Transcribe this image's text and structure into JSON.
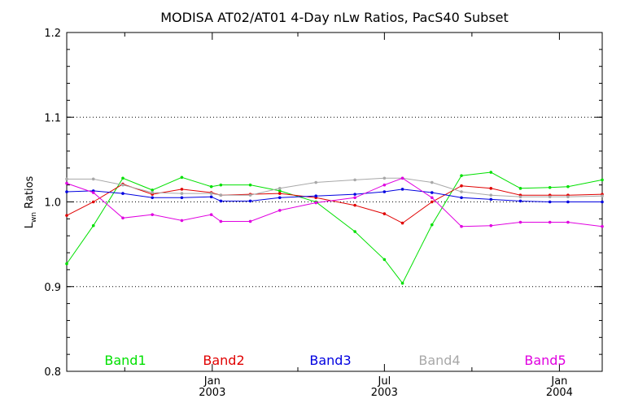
{
  "chart_data": {
    "type": "line",
    "title": "MODISA AT02/AT01 4-Day nLw Ratios, PacS40 Subset",
    "ylabel": {
      "main": "L",
      "sub": "wn",
      "rest": " Ratios"
    },
    "xlabel": "",
    "ylim": [
      0.8,
      1.2
    ],
    "yticks": [
      "0.8",
      "0.9",
      "1.0",
      "1.1",
      "1.2"
    ],
    "xlim": [
      "2002-08-01",
      "2004-02-15"
    ],
    "xticks": [
      {
        "date": "2003-01-01",
        "month": "Jan",
        "year": "2003"
      },
      {
        "date": "2003-07-01",
        "month": "Jul",
        "year": "2003"
      },
      {
        "date": "2004-01-01",
        "month": "Jan",
        "year": "2004"
      }
    ],
    "minor_xticks": [
      "2002-10-01",
      "2003-04-01",
      "2003-10-01"
    ],
    "reference_lines": [
      0.9,
      1.0,
      1.1
    ],
    "grid": "dotted horizontal at 0.9, 1.0, 1.1",
    "legend_position": "bottom",
    "series": [
      {
        "name": "Band1",
        "color": "#00e000",
        "x": [
          "2002-08-01",
          "2002-08-29",
          "2002-09-29",
          "2002-10-30",
          "2002-11-30",
          "2002-12-31",
          "2003-01-10",
          "2003-02-10",
          "2003-03-13",
          "2003-04-20",
          "2003-05-31",
          "2003-07-01",
          "2003-07-20",
          "2003-08-20",
          "2003-09-20",
          "2003-10-21",
          "2003-11-21",
          "2003-12-22",
          "2004-01-10",
          "2004-02-15"
        ],
        "values": [
          0.927,
          0.972,
          1.028,
          1.014,
          1.029,
          1.018,
          1.02,
          1.02,
          1.013,
          1.0,
          0.965,
          0.932,
          0.904,
          0.973,
          1.031,
          1.035,
          1.016,
          1.017,
          1.018,
          1.026
        ]
      },
      {
        "name": "Band2",
        "color": "#e00000",
        "x": [
          "2002-08-01",
          "2002-08-29",
          "2002-09-29",
          "2002-10-30",
          "2002-11-30",
          "2002-12-31",
          "2003-01-10",
          "2003-02-10",
          "2003-03-13",
          "2003-04-20",
          "2003-05-31",
          "2003-07-01",
          "2003-07-20",
          "2003-08-20",
          "2003-09-20",
          "2003-10-21",
          "2003-11-21",
          "2003-12-22",
          "2004-01-10",
          "2004-02-15"
        ],
        "values": [
          0.984,
          1.0,
          1.021,
          1.009,
          1.015,
          1.011,
          1.008,
          1.009,
          1.01,
          1.005,
          0.996,
          0.986,
          0.975,
          1.0,
          1.019,
          1.016,
          1.008,
          1.008,
          1.008,
          1.009
        ]
      },
      {
        "name": "Band3",
        "color": "#0000e0",
        "x": [
          "2002-08-01",
          "2002-08-29",
          "2002-09-29",
          "2002-10-30",
          "2002-11-30",
          "2002-12-31",
          "2003-01-10",
          "2003-02-10",
          "2003-03-13",
          "2003-04-20",
          "2003-05-31",
          "2003-07-01",
          "2003-07-20",
          "2003-08-20",
          "2003-09-20",
          "2003-10-21",
          "2003-11-21",
          "2003-12-22",
          "2004-01-10",
          "2004-02-15"
        ],
        "values": [
          1.012,
          1.013,
          1.01,
          1.005,
          1.005,
          1.006,
          1.001,
          1.001,
          1.005,
          1.007,
          1.009,
          1.012,
          1.015,
          1.011,
          1.005,
          1.003,
          1.001,
          1.0,
          1.0,
          1.0
        ]
      },
      {
        "name": "Band4",
        "color": "#a8a8a8",
        "x": [
          "2002-08-01",
          "2002-08-29",
          "2002-09-29",
          "2002-10-30",
          "2002-11-30",
          "2002-12-31",
          "2003-01-10",
          "2003-02-10",
          "2003-03-13",
          "2003-04-20",
          "2003-05-31",
          "2003-07-01",
          "2003-07-20",
          "2003-08-20",
          "2003-09-20",
          "2003-10-21",
          "2003-11-21",
          "2003-12-22",
          "2004-01-10",
          "2004-02-15"
        ],
        "values": [
          1.027,
          1.027,
          1.02,
          1.011,
          1.01,
          1.01,
          1.008,
          1.008,
          1.016,
          1.023,
          1.026,
          1.028,
          1.028,
          1.023,
          1.012,
          1.008,
          1.006,
          1.006,
          1.006,
          1.007
        ]
      },
      {
        "name": "Band5",
        "color": "#e000e0",
        "x": [
          "2002-08-01",
          "2002-08-29",
          "2002-09-29",
          "2002-10-30",
          "2002-11-30",
          "2002-12-31",
          "2003-01-10",
          "2003-02-10",
          "2003-03-13",
          "2003-04-20",
          "2003-05-31",
          "2003-07-01",
          "2003-07-20",
          "2003-08-20",
          "2003-09-20",
          "2003-10-21",
          "2003-11-21",
          "2003-12-22",
          "2004-01-10",
          "2004-02-15"
        ],
        "values": [
          1.022,
          1.011,
          0.981,
          0.985,
          0.978,
          0.985,
          0.977,
          0.977,
          0.99,
          0.999,
          1.005,
          1.02,
          1.028,
          1.005,
          0.971,
          0.972,
          0.976,
          0.976,
          0.976,
          0.971
        ]
      }
    ]
  }
}
